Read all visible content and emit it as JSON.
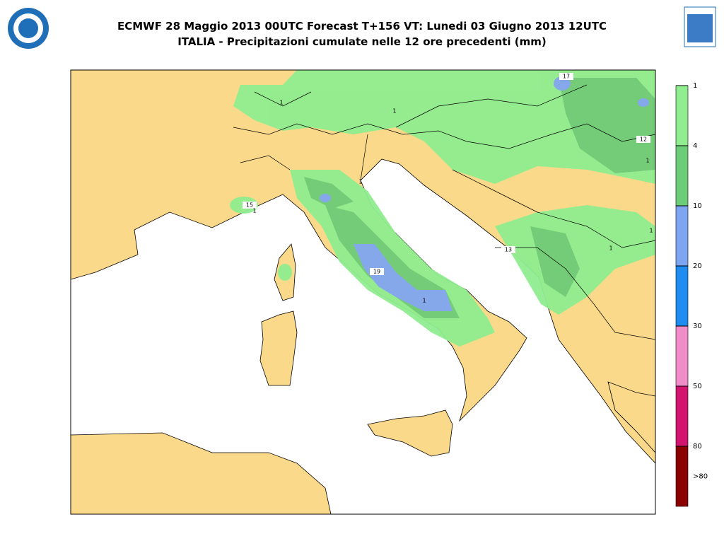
{
  "header": {
    "title": "ECMWF 28 Maggio 2013 00UTC Forecast T+156 VT: Lunedi 03 Giugno 2013 12UTC",
    "subtitle": "ITALIA - Precipitazioni cumulate nelle 12 ore precedenti (mm)"
  },
  "legend": {
    "labels": [
      "1",
      "4",
      "10",
      "20",
      "30",
      "50",
      "80",
      ">80"
    ],
    "colors": [
      "#90ee90",
      "#6dcc78",
      "#7ea6f0",
      "#1e8cf0",
      "#f08cc8",
      "#d2146e",
      "#8b0000"
    ]
  },
  "map": {
    "labels": [
      "15",
      "19",
      "17",
      "12",
      "13",
      "1",
      "1",
      "1",
      "1",
      "1",
      "1",
      "1",
      "1"
    ]
  }
}
